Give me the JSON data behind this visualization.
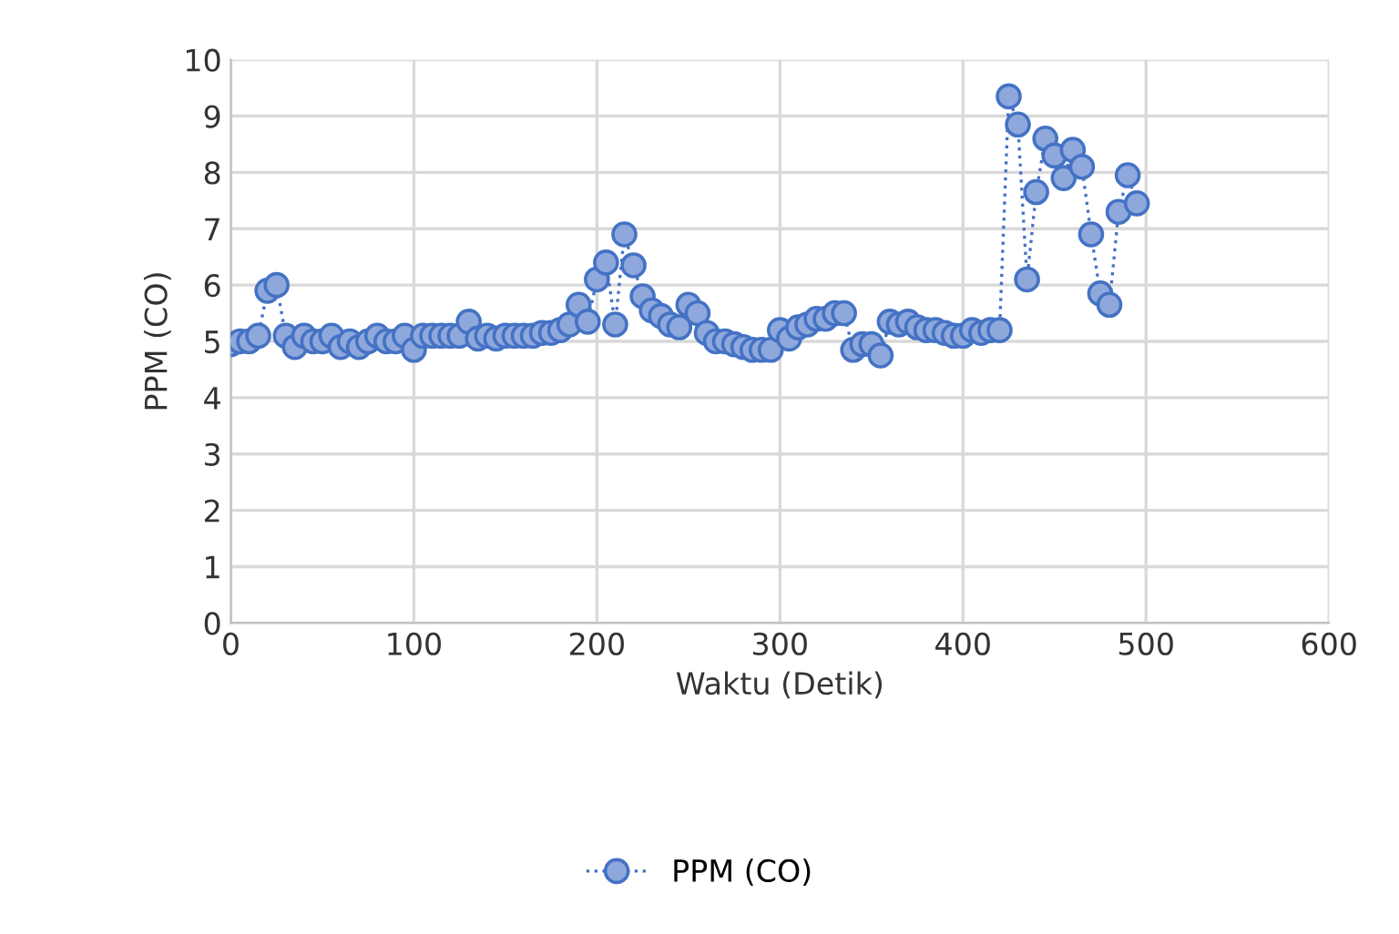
{
  "chart_data": {
    "type": "line",
    "xlabel": "Waktu (Detik)",
    "ylabel": "PPM (CO)",
    "x": [
      0,
      5,
      10,
      15,
      20,
      25,
      30,
      35,
      40,
      45,
      50,
      55,
      60,
      65,
      70,
      75,
      80,
      85,
      90,
      95,
      100,
      105,
      110,
      115,
      120,
      125,
      130,
      135,
      140,
      145,
      150,
      155,
      160,
      165,
      170,
      175,
      180,
      185,
      190,
      195,
      200,
      205,
      210,
      215,
      220,
      225,
      230,
      235,
      240,
      245,
      250,
      255,
      260,
      265,
      270,
      275,
      280,
      285,
      290,
      295,
      300,
      305,
      310,
      315,
      320,
      325,
      330,
      335,
      340,
      345,
      350,
      355,
      360,
      365,
      370,
      375,
      380,
      385,
      390,
      395,
      400,
      405,
      410,
      415,
      420,
      425,
      430,
      435,
      440,
      445,
      450,
      455,
      460,
      465,
      470,
      475,
      480,
      485,
      490,
      495
    ],
    "series": [
      {
        "name": "PPM (CO)",
        "color": "#4472c4",
        "values": [
          4.95,
          5.0,
          5.0,
          5.1,
          5.9,
          6.0,
          5.1,
          4.9,
          5.1,
          5.0,
          5.0,
          5.1,
          4.9,
          5.0,
          4.9,
          5.0,
          5.1,
          5.0,
          5.0,
          5.1,
          4.85,
          5.1,
          5.1,
          5.1,
          5.1,
          5.1,
          5.35,
          5.05,
          5.1,
          5.05,
          5.1,
          5.1,
          5.1,
          5.1,
          5.15,
          5.15,
          5.2,
          5.3,
          5.65,
          5.35,
          6.1,
          6.4,
          5.3,
          6.9,
          6.35,
          5.8,
          5.55,
          5.45,
          5.3,
          5.25,
          5.65,
          5.5,
          5.15,
          5.0,
          5.0,
          4.95,
          4.9,
          4.85,
          4.85,
          4.85,
          5.2,
          5.05,
          5.25,
          5.3,
          5.4,
          5.4,
          5.5,
          5.5,
          4.85,
          4.95,
          4.95,
          4.75,
          5.35,
          5.3,
          5.35,
          5.25,
          5.2,
          5.2,
          5.15,
          5.1,
          5.1,
          5.2,
          5.15,
          5.2,
          5.2,
          9.35,
          8.85,
          6.1,
          7.65,
          8.6,
          8.3,
          7.9,
          8.4,
          8.1,
          6.9,
          5.85,
          5.65,
          7.3,
          7.95,
          7.45
        ]
      }
    ],
    "xlim": [
      0,
      600
    ],
    "xticks": [
      0,
      100,
      200,
      300,
      400,
      500,
      600
    ],
    "ylim": [
      0,
      10
    ],
    "yticks": [
      0,
      1,
      2,
      3,
      4,
      5,
      6,
      7,
      8,
      9,
      10
    ],
    "grid": true,
    "legend": "bottom",
    "marker": "circle",
    "line_style": "dotted"
  }
}
